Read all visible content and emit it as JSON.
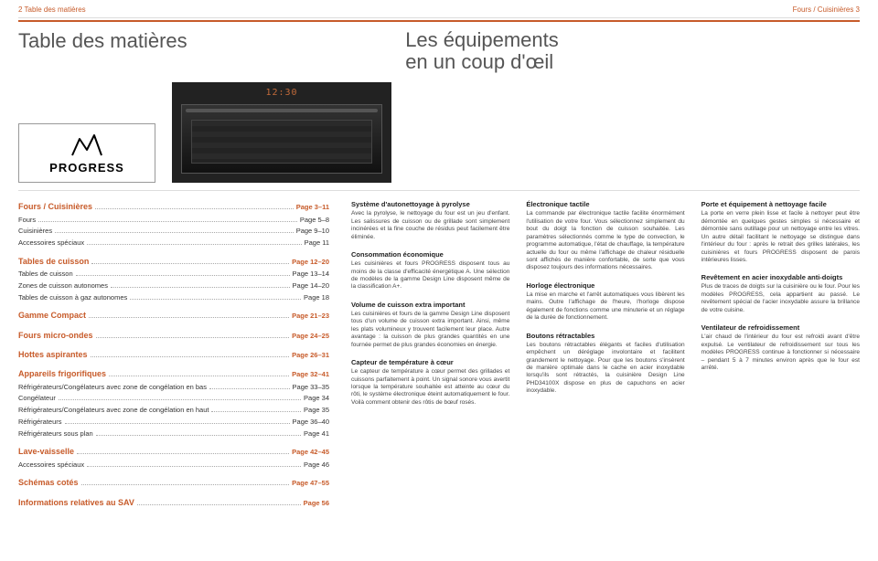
{
  "header": {
    "left": "2 Table des matières",
    "right": "Fours / Cuisinières 3"
  },
  "titles": {
    "left": "Table des matières",
    "right_l1": "Les équipements",
    "right_l2": "en un coup d'œil"
  },
  "logo": {
    "text": "PROGRESS"
  },
  "oven": {
    "display": "12:30"
  },
  "toc": [
    {
      "type": "section",
      "label": "Fours / Cuisinières",
      "page": "Page 3–11",
      "items": [
        {
          "label": "Fours",
          "page": "Page 5–8"
        },
        {
          "label": "Cuisinières",
          "page": "Page 9–10"
        },
        {
          "label": "Accessoires spéciaux",
          "page": "Page 11"
        }
      ]
    },
    {
      "type": "section",
      "label": "Tables de cuisson",
      "page": "Page 12–20",
      "items": [
        {
          "label": "Tables de cuisson",
          "page": "Page 13–14"
        },
        {
          "label": "Zones de cuisson autonomes",
          "page": "Page 14–20"
        },
        {
          "label": "Tables de cuisson à gaz autonomes",
          "page": "Page 18"
        }
      ]
    },
    {
      "type": "section",
      "label": "Gamme Compact",
      "page": "Page 21–23",
      "items": []
    },
    {
      "type": "section",
      "label": "Fours micro-ondes",
      "page": "Page 24–25",
      "items": []
    },
    {
      "type": "section",
      "label": "Hottes aspirantes",
      "page": "Page 26–31",
      "items": []
    },
    {
      "type": "section",
      "label": "Appareils frigorifiques",
      "page": "Page 32–41",
      "items": [
        {
          "label": "Réfrigérateurs/Congélateurs avec zone de congélation en bas",
          "page": "Page 33–35"
        },
        {
          "label": "Congélateur",
          "page": "Page 34"
        },
        {
          "label": "Réfrigérateurs/Congélateurs avec zone de congélation en haut",
          "page": "Page 35"
        },
        {
          "label": "Réfrigérateurs",
          "page": "Page 36–40"
        },
        {
          "label": "Réfrigérateurs sous plan",
          "page": "Page 41"
        }
      ]
    },
    {
      "type": "section",
      "label": "Lave-vaisselle",
      "page": "Page 42–45",
      "items": [
        {
          "label": "Accessoires spéciaux",
          "page": "Page 46"
        }
      ]
    },
    {
      "type": "section",
      "label": "Schémas cotés",
      "page": "Page 47–55",
      "items": []
    },
    {
      "type": "section",
      "label": "Informations relatives au SAV",
      "page": "Page 56",
      "items": []
    }
  ],
  "columns": [
    [
      {
        "title": "Système d'autonettoyage à pyrolyse",
        "body": "Avec la pyrolyse, le nettoyage du four est un jeu d'enfant. Les salissures de cuisson ou de grillade sont simplement incinérées et la fine couche de résidus peut facilement être éliminée."
      },
      {
        "title": "Consommation économique",
        "body": "Les cuisinières et fours PROGRESS disposent tous au moins de la classe d'efficacité énergétique A. Une sélection de modèles de la gamme Design Line disposent même de la classification A+."
      },
      {
        "title": "Volume de cuisson extra important",
        "body": "Les cuisinières et fours de la gamme Design Line disposent tous d'un volume de cuisson extra important. Ainsi, même les plats volumineux y trouvent facilement leur place. Autre avantage : la cuisson de plus grandes quantités en une fournée permet de plus grandes économies en énergie."
      },
      {
        "title": "Capteur de température à cœur",
        "body": "Le capteur de température à cœur permet des grillades et cuissons parfaitement à point. Un signal sonore vous avertit lorsque la température souhaitée est atteinte au cœur du rôti, le système électronique éteint automatiquement le four. Voilà comment obtenir des rôtis de bœuf rosés."
      }
    ],
    [
      {
        "title": "Électronique tactile",
        "body": "La commande par électronique tactile facilite énormément l'utilisation de votre four. Vous sélectionnez simplement du bout du doigt la fonction de cuisson souhaitée. Les paramètres sélectionnés comme le type de convection, le programme automatique, l'état de chauffage, la température actuelle du four ou même l'affichage de chaleur résiduelle sont affichés de manière confortable, de sorte que vous disposez toujours des informations nécessaires."
      },
      {
        "title": "Horloge électronique",
        "body": "La mise en marche et l'arrêt automatiques vous libèrent les mains. Outre l'affichage de l'heure, l'horloge dispose également de fonctions comme une minuterie et un réglage de la durée de fonctionnement."
      },
      {
        "title": "Boutons rétractables",
        "body": "Les boutons rétractables élégants et faciles d'utilisation empêchent un déréglage involontaire et facilitent grandement le nettoyage. Pour que les boutons s'insèrent de manière optimale dans le cache en acier inoxydable lorsqu'ils sont rétractés, la cuisinière Design Line PHD34100X dispose en plus de capuchons en acier inoxydable."
      }
    ],
    [
      {
        "title": "Porte et équipement à nettoyage facile",
        "body": "La porte en verre plein lisse et facile à nettoyer peut être démontée en quelques gestes simples si nécessaire et démontée sans outillage pour un nettoyage entre les vitres. Un autre détail facilitant le nettoyage se distingue dans l'intérieur du four : après le retrait des grilles latérales, les cuisinières et fours PROGRESS disposent de parois intérieures lisses."
      },
      {
        "title": "Revêtement en acier inoxydable anti-doigts",
        "body": "Plus de traces de doigts sur la cuisinière ou le four. Pour les modèles PROGRESS, cela appartient au passé. Le revêtement spécial de l'acier inoxydable assure la brillance de votre cuisine."
      },
      {
        "title": "Ventilateur de refroidissement",
        "body": "L'air chaud de l'intérieur du four est refroidi avant d'être expulsé. Le ventilateur de refroidissement sur tous les modèles PROGRESS continue à fonctionner si nécessaire – pendant 5 à 7 minutes environ après que le four est arrêté."
      }
    ]
  ]
}
